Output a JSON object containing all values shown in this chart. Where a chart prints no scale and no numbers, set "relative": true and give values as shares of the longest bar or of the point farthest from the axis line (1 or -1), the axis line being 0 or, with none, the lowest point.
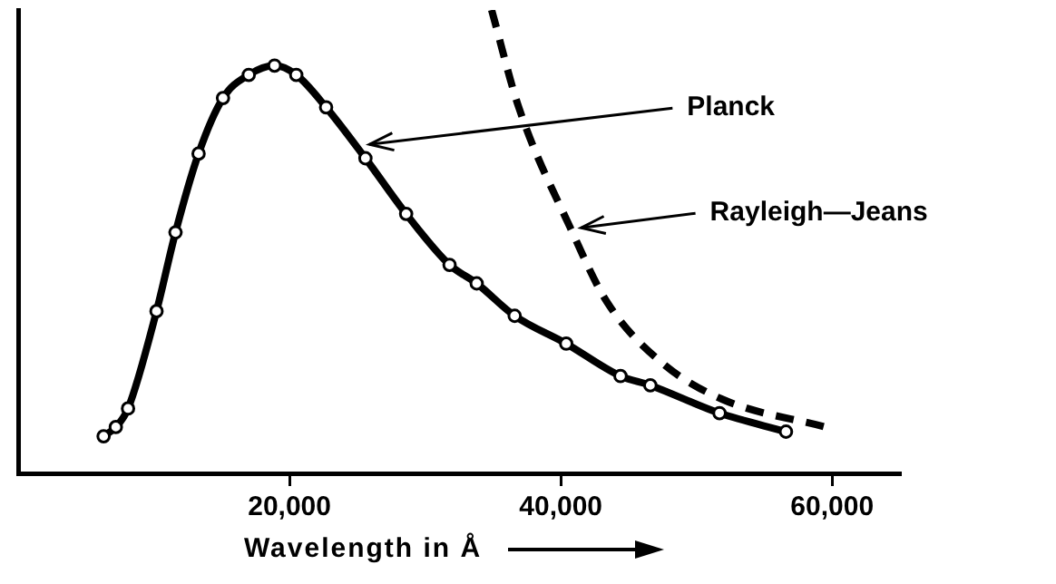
{
  "chart_data": {
    "type": "line",
    "relative": true,
    "xlabel": "Wavelength in Å",
    "xlim": [
      0,
      65000
    ],
    "xticks": [
      {
        "value": 20000,
        "label": "20,000"
      },
      {
        "value": 40000,
        "label": "40,000"
      },
      {
        "value": 60000,
        "label": "60,000"
      }
    ],
    "grid": false,
    "legend": false,
    "annotations": [
      {
        "text": "Planck",
        "x": 25500,
        "y": 0.71
      },
      {
        "text": "Rayleigh—Jeans",
        "x": 41100,
        "y": 0.53
      }
    ],
    "series": [
      {
        "color": "#000000",
        "marker": "circle",
        "line_style": "solid",
        "x": [
          6300,
          7200,
          8100,
          10200,
          11600,
          13300,
          15100,
          17000,
          18900,
          20500,
          22700,
          25600,
          28600,
          31800,
          33800,
          36600,
          40400,
          44400,
          46600,
          51700,
          56600
        ],
        "values": [
          0.08,
          0.1,
          0.14,
          0.35,
          0.52,
          0.69,
          0.81,
          0.86,
          0.88,
          0.86,
          0.79,
          0.68,
          0.56,
          0.45,
          0.41,
          0.34,
          0.28,
          0.21,
          0.19,
          0.13,
          0.09
        ]
      },
      {
        "color": "#000000",
        "marker": "none",
        "line_style": "dashed",
        "x": [
          34900,
          36900,
          40700,
          43400,
          47400,
          51900,
          59500
        ],
        "values": [
          1.0,
          0.79,
          0.53,
          0.37,
          0.24,
          0.16,
          0.1
        ]
      }
    ]
  }
}
